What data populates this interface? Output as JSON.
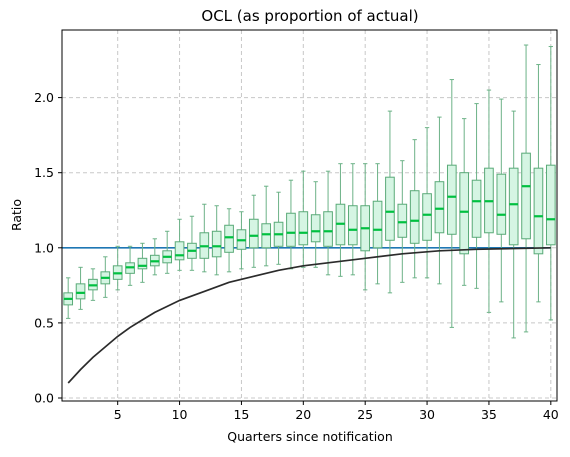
{
  "chart_data": {
    "type": "box",
    "title": "OCL (as proportion of actual)",
    "xlabel": "Quarters since notification",
    "ylabel": "Ratio",
    "xlim": [
      0.5,
      40.5
    ],
    "ylim": [
      -0.02,
      2.45
    ],
    "xticks": [
      5,
      10,
      15,
      20,
      25,
      30,
      35,
      40
    ],
    "xtick_labels": [
      "5",
      "10",
      "15",
      "20",
      "25",
      "30",
      "35",
      "40"
    ],
    "yticks": [
      0.0,
      0.5,
      1.0,
      1.5,
      2.0
    ],
    "ytick_labels": [
      "0.0",
      "0.5",
      "1.0",
      "1.5",
      "2.0"
    ],
    "grid": true,
    "legend": "none",
    "colors": {
      "box_edge": "#5aaa78",
      "box_fill": "#d5f5e3",
      "median": "#00c040",
      "whisker": "#6cb287",
      "reference_line": "#1f77b4",
      "curve": "#2b2b2b",
      "grid": "#c8c8c8"
    },
    "boxes": [
      {
        "x": 1,
        "whislo": 0.53,
        "q1": 0.62,
        "med": 0.66,
        "q3": 0.7,
        "whishi": 0.8
      },
      {
        "x": 2,
        "whislo": 0.59,
        "q1": 0.66,
        "med": 0.7,
        "q3": 0.76,
        "whishi": 0.87
      },
      {
        "x": 3,
        "whislo": 0.65,
        "q1": 0.72,
        "med": 0.75,
        "q3": 0.79,
        "whishi": 0.86
      },
      {
        "x": 4,
        "whislo": 0.67,
        "q1": 0.76,
        "med": 0.8,
        "q3": 0.84,
        "whishi": 0.94
      },
      {
        "x": 5,
        "whislo": 0.72,
        "q1": 0.79,
        "med": 0.83,
        "q3": 0.88,
        "whishi": 1.01
      },
      {
        "x": 6,
        "whislo": 0.75,
        "q1": 0.83,
        "med": 0.87,
        "q3": 0.9,
        "whishi": 1.01
      },
      {
        "x": 7,
        "whislo": 0.77,
        "q1": 0.86,
        "med": 0.88,
        "q3": 0.93,
        "whishi": 1.03
      },
      {
        "x": 8,
        "whislo": 0.82,
        "q1": 0.88,
        "med": 0.91,
        "q3": 0.95,
        "whishi": 1.06
      },
      {
        "x": 9,
        "whislo": 0.83,
        "q1": 0.9,
        "med": 0.94,
        "q3": 0.98,
        "whishi": 1.11
      },
      {
        "x": 10,
        "whislo": 0.85,
        "q1": 0.92,
        "med": 0.95,
        "q3": 1.04,
        "whishi": 1.19
      },
      {
        "x": 11,
        "whislo": 0.85,
        "q1": 0.93,
        "med": 0.98,
        "q3": 1.03,
        "whishi": 1.21
      },
      {
        "x": 12,
        "whislo": 0.84,
        "q1": 0.93,
        "med": 1.01,
        "q3": 1.1,
        "whishi": 1.29
      },
      {
        "x": 13,
        "whislo": 0.82,
        "q1": 0.94,
        "med": 1.01,
        "q3": 1.11,
        "whishi": 1.28
      },
      {
        "x": 14,
        "whislo": 0.84,
        "q1": 0.97,
        "med": 1.07,
        "q3": 1.15,
        "whishi": 1.26
      },
      {
        "x": 15,
        "whislo": 0.86,
        "q1": 0.99,
        "med": 1.05,
        "q3": 1.12,
        "whishi": 1.24
      },
      {
        "x": 16,
        "whislo": 0.87,
        "q1": 1.0,
        "med": 1.08,
        "q3": 1.19,
        "whishi": 1.35
      },
      {
        "x": 17,
        "whislo": 0.88,
        "q1": 1.0,
        "med": 1.09,
        "q3": 1.16,
        "whishi": 1.41
      },
      {
        "x": 18,
        "whislo": 0.89,
        "q1": 1.01,
        "med": 1.09,
        "q3": 1.17,
        "whishi": 1.37
      },
      {
        "x": 19,
        "whislo": 0.86,
        "q1": 1.01,
        "med": 1.1,
        "q3": 1.23,
        "whishi": 1.45
      },
      {
        "x": 20,
        "whislo": 0.87,
        "q1": 1.02,
        "med": 1.1,
        "q3": 1.24,
        "whishi": 1.51
      },
      {
        "x": 21,
        "whislo": 0.87,
        "q1": 1.04,
        "med": 1.11,
        "q3": 1.22,
        "whishi": 1.44
      },
      {
        "x": 22,
        "whislo": 0.82,
        "q1": 1.01,
        "med": 1.11,
        "q3": 1.24,
        "whishi": 1.51
      },
      {
        "x": 23,
        "whislo": 0.81,
        "q1": 1.02,
        "med": 1.16,
        "q3": 1.29,
        "whishi": 1.56
      },
      {
        "x": 24,
        "whislo": 0.82,
        "q1": 1.02,
        "med": 1.12,
        "q3": 1.28,
        "whishi": 1.56
      },
      {
        "x": 25,
        "whislo": 0.72,
        "q1": 0.98,
        "med": 1.13,
        "q3": 1.28,
        "whishi": 1.56
      },
      {
        "x": 26,
        "whislo": 0.76,
        "q1": 1.0,
        "med": 1.12,
        "q3": 1.31,
        "whishi": 1.56
      },
      {
        "x": 27,
        "whislo": 0.7,
        "q1": 1.05,
        "med": 1.24,
        "q3": 1.47,
        "whishi": 1.91
      },
      {
        "x": 28,
        "whislo": 0.77,
        "q1": 1.07,
        "med": 1.17,
        "q3": 1.29,
        "whishi": 1.58
      },
      {
        "x": 29,
        "whislo": 0.8,
        "q1": 1.03,
        "med": 1.18,
        "q3": 1.38,
        "whishi": 1.72
      },
      {
        "x": 30,
        "whislo": 0.8,
        "q1": 1.05,
        "med": 1.22,
        "q3": 1.36,
        "whishi": 1.8
      },
      {
        "x": 31,
        "whislo": 0.76,
        "q1": 1.1,
        "med": 1.26,
        "q3": 1.44,
        "whishi": 1.87
      },
      {
        "x": 32,
        "whislo": 0.47,
        "q1": 1.09,
        "med": 1.34,
        "q3": 1.55,
        "whishi": 2.12
      },
      {
        "x": 33,
        "whislo": 0.75,
        "q1": 0.96,
        "med": 1.24,
        "q3": 1.5,
        "whishi": 1.86
      },
      {
        "x": 34,
        "whislo": 0.73,
        "q1": 1.07,
        "med": 1.31,
        "q3": 1.45,
        "whishi": 1.96
      },
      {
        "x": 35,
        "whislo": 0.57,
        "q1": 1.1,
        "med": 1.31,
        "q3": 1.53,
        "whishi": 2.05
      },
      {
        "x": 36,
        "whislo": 0.64,
        "q1": 1.09,
        "med": 1.22,
        "q3": 1.49,
        "whishi": 1.99
      },
      {
        "x": 37,
        "whislo": 0.4,
        "q1": 1.02,
        "med": 1.29,
        "q3": 1.53,
        "whishi": 1.91
      },
      {
        "x": 38,
        "whislo": 0.44,
        "q1": 1.06,
        "med": 1.41,
        "q3": 1.63,
        "whishi": 2.35
      },
      {
        "x": 39,
        "whislo": 0.64,
        "q1": 0.96,
        "med": 1.21,
        "q3": 1.53,
        "whishi": 2.22
      },
      {
        "x": 40,
        "whislo": 0.52,
        "q1": 1.02,
        "med": 1.19,
        "q3": 1.55,
        "whishi": 2.34
      }
    ],
    "reference_line": {
      "y": 1.0,
      "x_range": [
        0.5,
        40
      ]
    },
    "curve": {
      "x": [
        1,
        2,
        3,
        4,
        5,
        6,
        7,
        8,
        9,
        10,
        12,
        14,
        16,
        18,
        20,
        22,
        25,
        28,
        31,
        34,
        37,
        40
      ],
      "y": [
        0.1,
        0.19,
        0.27,
        0.34,
        0.41,
        0.47,
        0.52,
        0.57,
        0.61,
        0.65,
        0.71,
        0.77,
        0.81,
        0.85,
        0.88,
        0.9,
        0.93,
        0.96,
        0.98,
        0.99,
        0.995,
        1.0
      ]
    }
  }
}
